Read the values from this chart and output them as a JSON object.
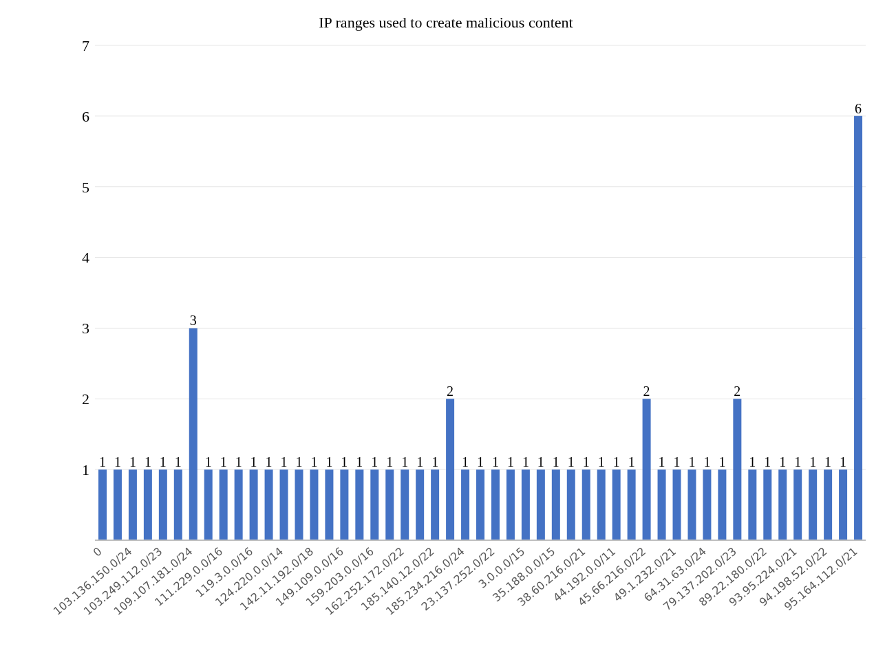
{
  "chart_data": {
    "type": "bar",
    "title": "IP ranges used to create malicious content",
    "categories": [
      "0",
      null,
      "103.136.150.0/24",
      null,
      "103.249.112.0/23",
      null,
      "109.107.181.0/24",
      null,
      "111.229.0.0/16",
      null,
      "119.3.0.0/16",
      null,
      "124.220.0.0/14",
      null,
      "142.11.192.0/18",
      null,
      "149.109.0.0/16",
      null,
      "159.203.0.0/16",
      null,
      "162.252.172.0/22",
      null,
      "185.140.12.0/22",
      null,
      "185.234.216.0/24",
      null,
      "23.137.252.0/22",
      null,
      "3.0.0.0/15",
      null,
      "35.188.0.0/15",
      null,
      "38.60.216.0/21",
      null,
      "44.192.0.0/11",
      null,
      "45.66.216.0/22",
      null,
      "49.1.232.0/21",
      null,
      "64.31.63.0/24",
      null,
      "79.137.202.0/23",
      null,
      "89.22.180.0/22",
      null,
      "93.95.224.0/21",
      null,
      "94.198.52.0/22",
      null,
      "95.164.112.0/21"
    ],
    "values": [
      1,
      1,
      1,
      1,
      1,
      1,
      3,
      1,
      1,
      1,
      1,
      1,
      1,
      1,
      1,
      1,
      1,
      1,
      1,
      1,
      1,
      1,
      1,
      2,
      1,
      1,
      1,
      1,
      1,
      1,
      1,
      1,
      1,
      1,
      1,
      1,
      2,
      1,
      1,
      1,
      1,
      1,
      2,
      1,
      1,
      1,
      1,
      1,
      1,
      1,
      6
    ],
    "color": "#4472c4",
    "ylim": [
      0,
      7
    ],
    "yticks": [
      1,
      2,
      3,
      4,
      5,
      6,
      7
    ],
    "grid": "y",
    "data_labels": true
  }
}
